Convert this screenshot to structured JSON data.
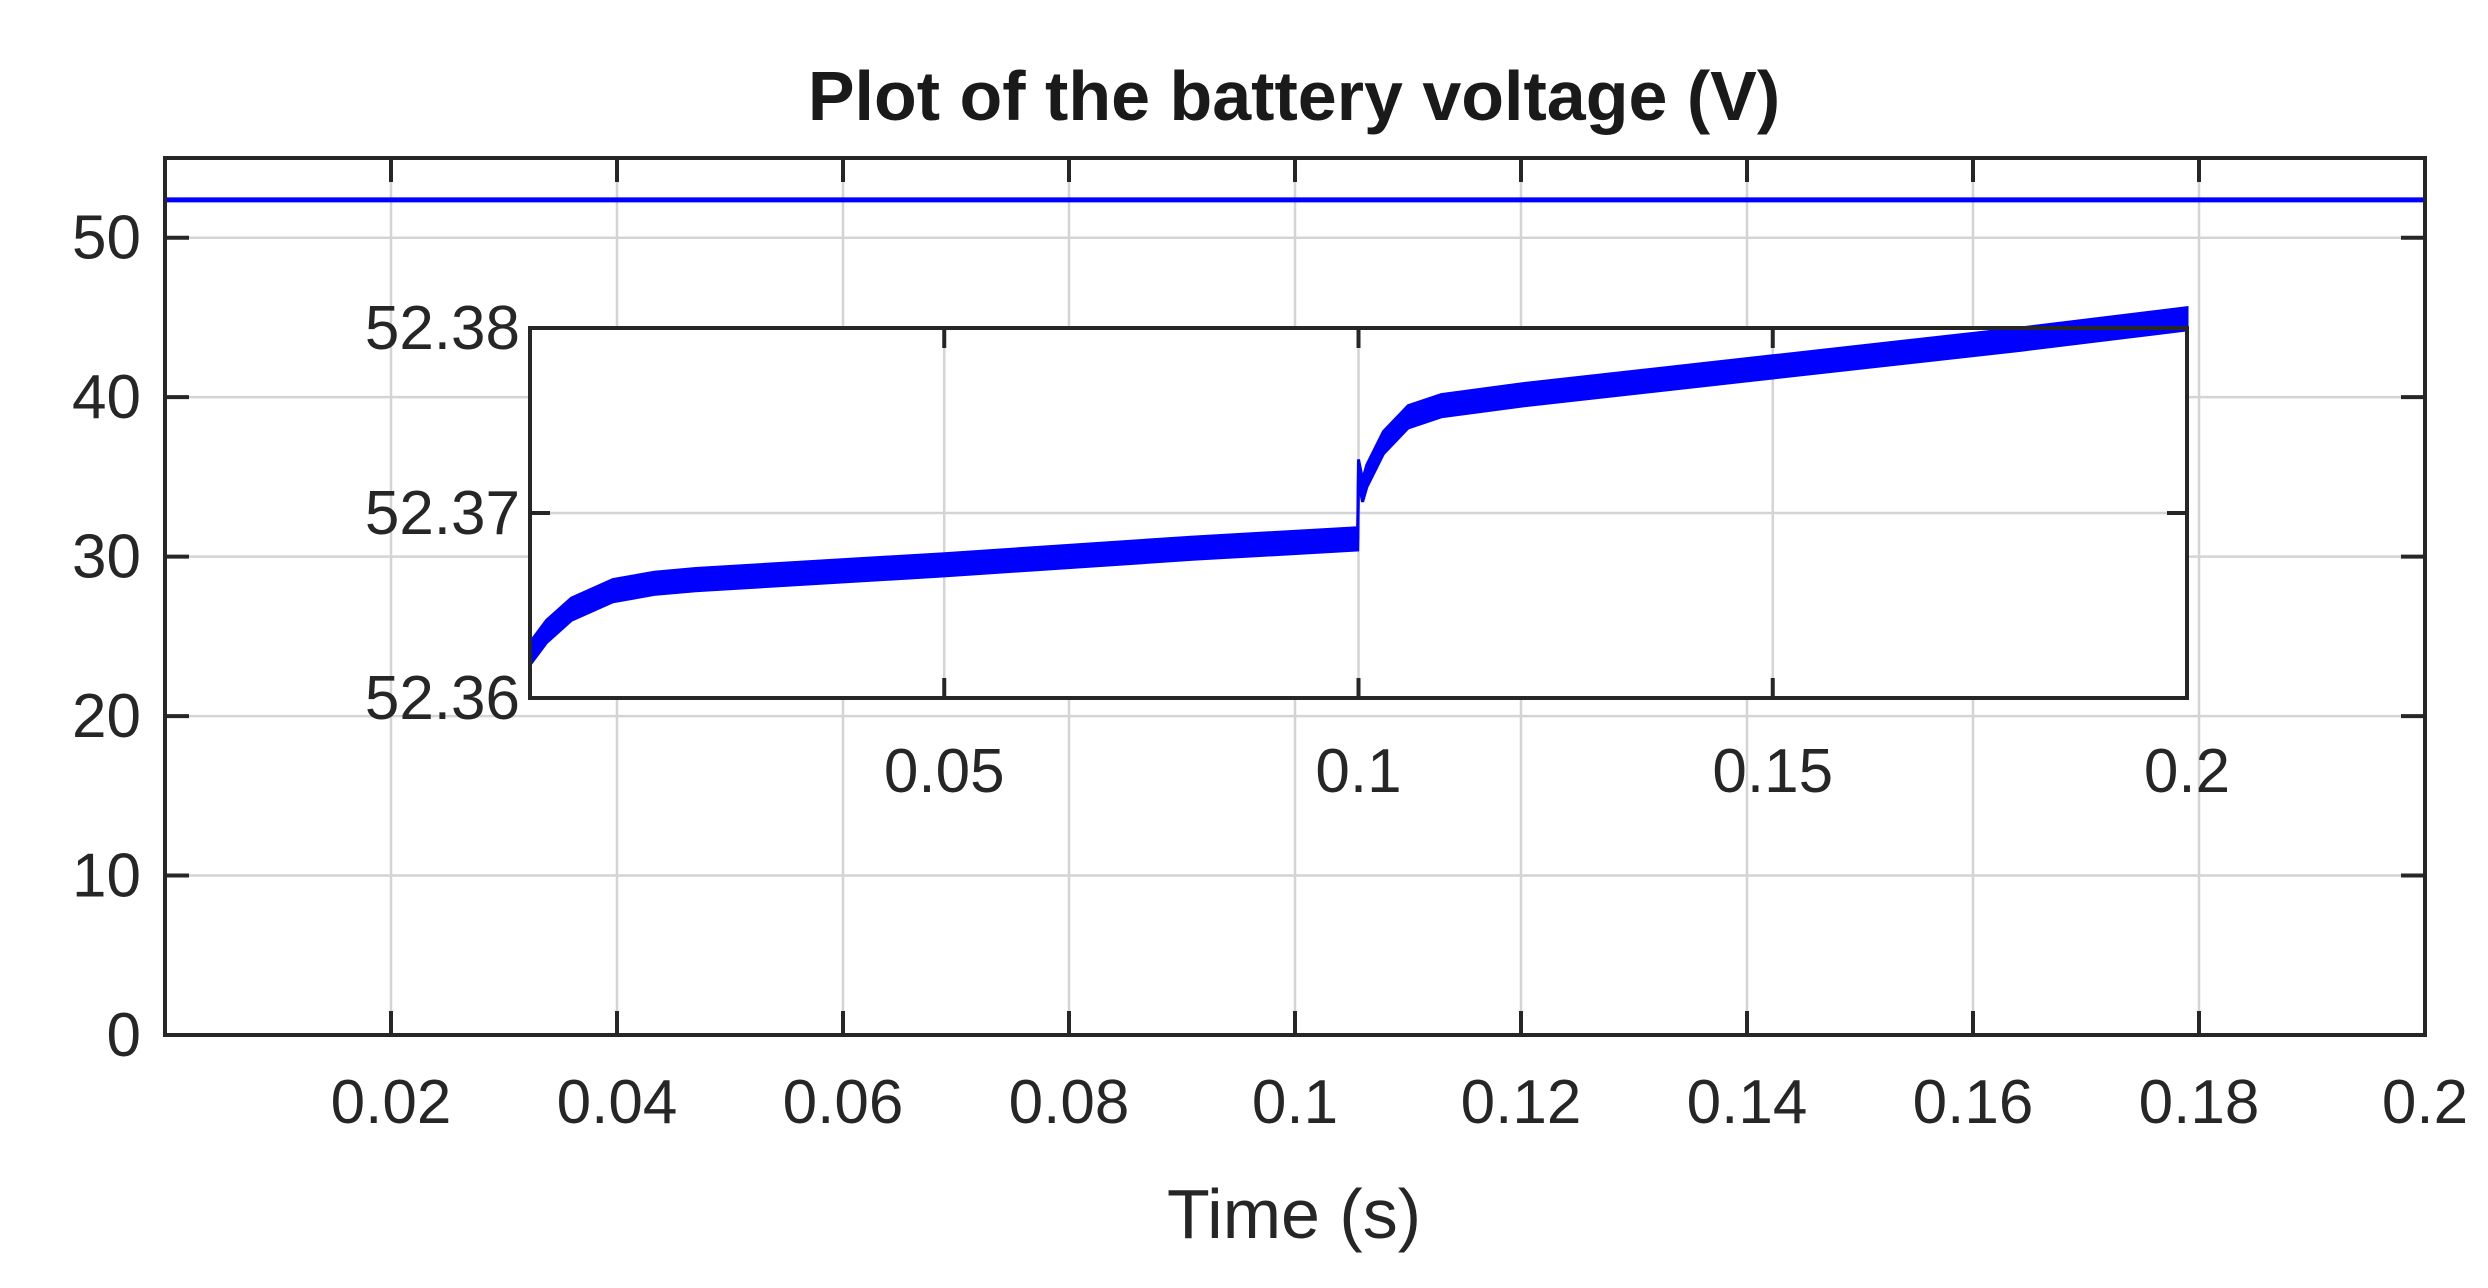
{
  "chart_data": [
    {
      "type": "line",
      "title": "Plot of the battery voltage (V)",
      "xlabel": "Time (s)",
      "ylabel": "",
      "xlim": [
        0,
        0.2
      ],
      "ylim": [
        0,
        55
      ],
      "grid": true,
      "x_ticks": [
        0.02,
        0.04,
        0.06,
        0.08,
        0.1,
        0.12,
        0.14,
        0.16,
        0.18,
        0.2
      ],
      "x_tick_labels": [
        "0.02",
        "0.04",
        "0.06",
        "0.08",
        "0.1",
        "0.12",
        "0.14",
        "0.16",
        "0.18",
        "0.2"
      ],
      "y_ticks": [
        0,
        10,
        20,
        30,
        40,
        50
      ],
      "y_tick_labels": [
        "0",
        "10",
        "20",
        "30",
        "40",
        "50"
      ],
      "series": [
        {
          "color": "#0000ff",
          "x": [
            0,
            0.05,
            0.1,
            0.15,
            0.2
          ],
          "y": [
            52.37,
            52.37,
            52.37,
            52.37,
            52.37
          ]
        }
      ]
    },
    {
      "type": "line",
      "title": "",
      "xlabel": "",
      "ylabel": "",
      "inset": true,
      "xlim": [
        0,
        0.2
      ],
      "ylim": [
        52.36,
        52.38
      ],
      "grid": true,
      "x_ticks": [
        0.05,
        0.1,
        0.15,
        0.2
      ],
      "x_tick_labels": [
        "0.05",
        "0.1",
        "0.15",
        "0.2"
      ],
      "y_ticks": [
        52.36,
        52.37,
        52.38
      ],
      "y_tick_labels": [
        "52.36",
        "52.37",
        "52.38"
      ],
      "series": [
        {
          "color": "#0000ff",
          "ripple_band": 0.0012,
          "x": [
            0,
            0.002,
            0.005,
            0.01,
            0.015,
            0.02,
            0.05,
            0.08,
            0.0999,
            0.1,
            0.1005,
            0.101,
            0.103,
            0.106,
            0.11,
            0.12,
            0.15,
            0.18,
            0.2
          ],
          "y": [
            52.3624,
            52.3636,
            52.3648,
            52.3658,
            52.3662,
            52.3664,
            52.3672,
            52.3681,
            52.3686,
            52.3723,
            52.3712,
            52.372,
            52.3738,
            52.3752,
            52.3758,
            52.3764,
            52.3779,
            52.3794,
            52.3805
          ]
        }
      ]
    }
  ]
}
